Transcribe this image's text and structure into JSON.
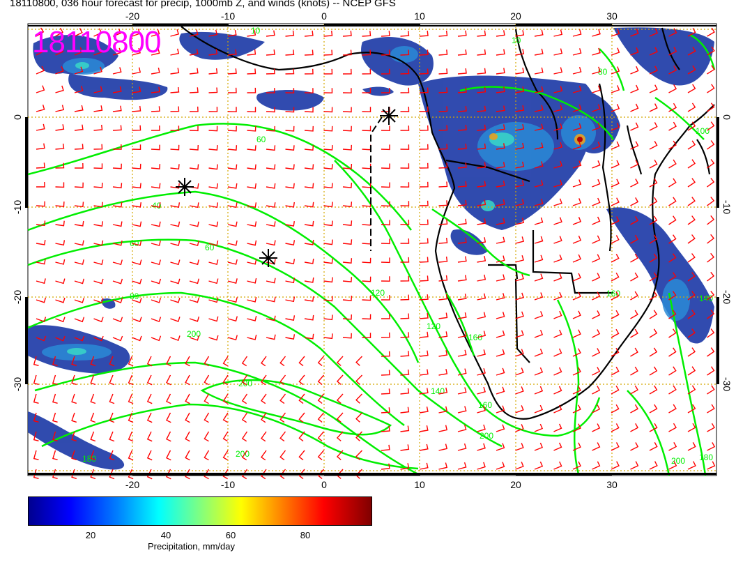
{
  "title": "18110800, 036 hour forecast for precip, 1000mb Z, and winds (knots) -- NCEP GFS",
  "run_label": "18110800",
  "map": {
    "lon_ticks": [
      "-20",
      "-10",
      "0",
      "10",
      "20",
      "30"
    ],
    "lat_ticks": [
      "0",
      "-10",
      "-20",
      "-30"
    ],
    "contour_labels": [
      "10",
      "40",
      "60",
      "60",
      "80",
      "120",
      "120",
      "140",
      "160",
      "180",
      "200",
      "200",
      "200",
      "200",
      "200",
      "80",
      "100",
      "160",
      "180",
      "140",
      "160",
      "10",
      "60"
    ],
    "colors": {
      "contour": "#00ee00",
      "barb": "#ff0000",
      "grid": "#d4a800",
      "coast": "#000000"
    }
  },
  "colorbar": {
    "ticks": [
      "20",
      "40",
      "60",
      "80"
    ],
    "label": "Precipitation, mm/day"
  }
}
